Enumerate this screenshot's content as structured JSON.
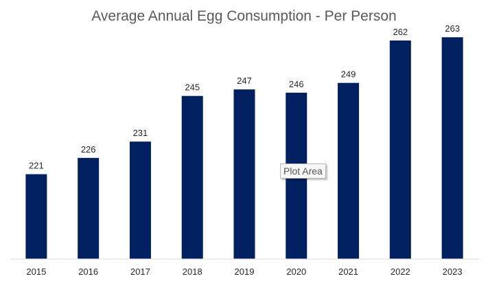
{
  "colors": {
    "bar": "#002060",
    "axis": "#d9d9d9",
    "title": "#595959",
    "label": "#262626"
  },
  "tooltip": {
    "label": "Plot Area"
  },
  "chart_data": {
    "type": "bar",
    "title": "Average Annual Egg Consumption - Per Person",
    "xlabel": "",
    "ylabel": "",
    "categories": [
      "2015",
      "2016",
      "2017",
      "2018",
      "2019",
      "2020",
      "2021",
      "2022",
      "2023"
    ],
    "values": [
      221,
      226,
      231,
      245,
      247,
      246,
      249,
      262,
      263
    ],
    "ylim": [
      195,
      270
    ],
    "grid": false,
    "legend": "none"
  }
}
